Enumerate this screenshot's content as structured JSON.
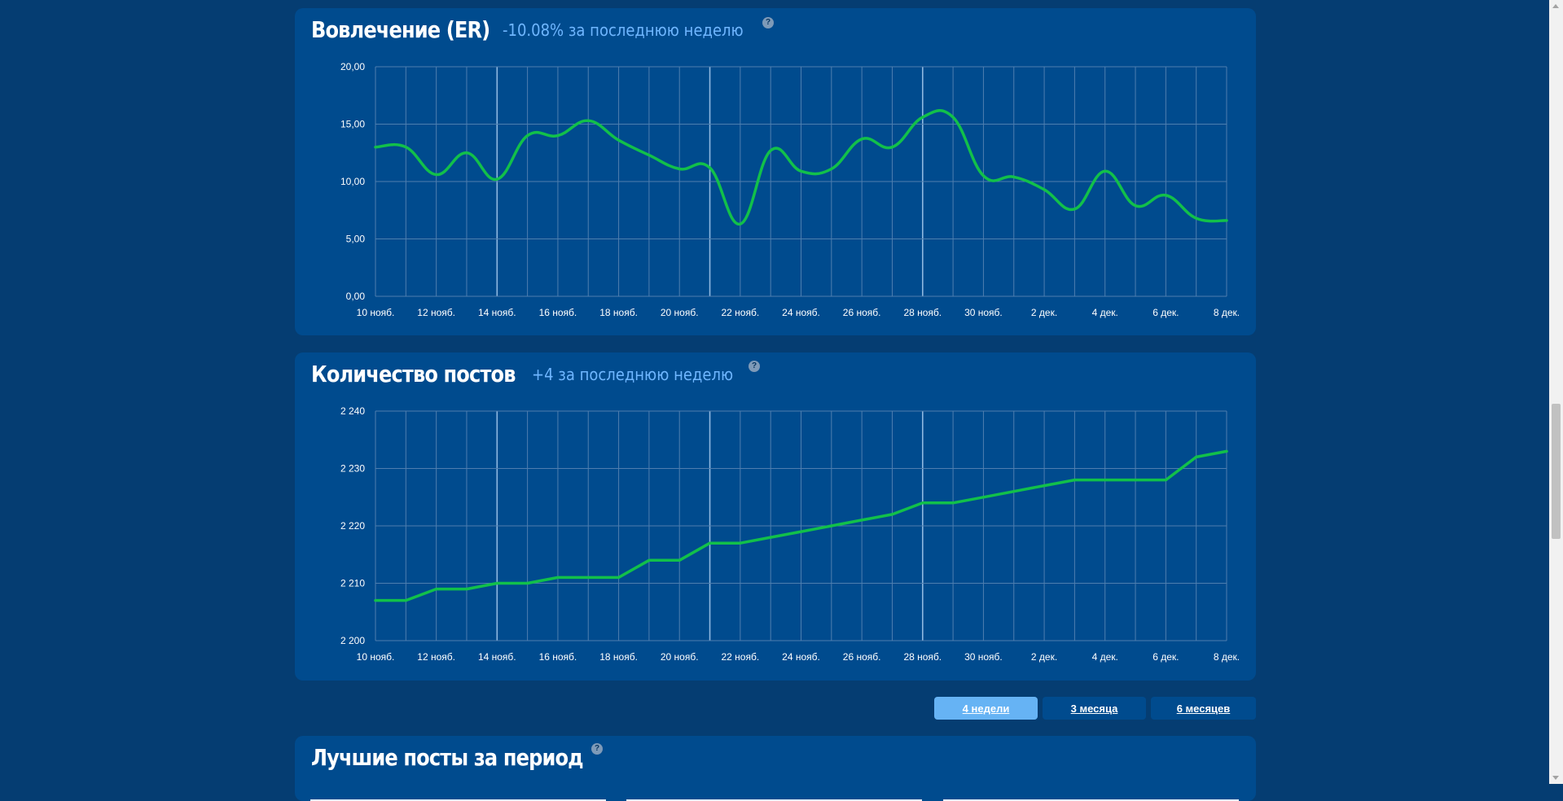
{
  "colors": {
    "page_bg": "#053d72",
    "card_bg": "#004b8e",
    "line": "#12c04a",
    "accent_text": "#6fb6ff",
    "active_button": "#66b3f4"
  },
  "charts_section": {
    "er": {
      "title": "Вовлечение (ER)",
      "delta": "-10.08% за последнюю неделю",
      "help": "?"
    },
    "posts": {
      "title": "Количество постов",
      "delta": "+4 за последнюю неделю",
      "help": "?"
    }
  },
  "range_buttons": [
    {
      "label": "4 недели",
      "active": true
    },
    {
      "label": "3 месяца",
      "active": false
    },
    {
      "label": "6 месяцев",
      "active": false
    }
  ],
  "best_posts": {
    "title": "Лучшие посты за период",
    "help": "?"
  },
  "chart_data": [
    {
      "type": "line",
      "title": "Вовлечение (ER)",
      "x_tick_labels": [
        "10 нояб.",
        "12 нояб.",
        "14 нояб.",
        "16 нояб.",
        "18 нояб.",
        "20 нояб.",
        "22 нояб.",
        "24 нояб.",
        "26 нояб.",
        "28 нояб.",
        "30 нояб.",
        "2 дек.",
        "4 дек.",
        "6 дек.",
        "8 дек."
      ],
      "x": [
        "10 нояб.",
        "11 нояб.",
        "12 нояб.",
        "13 нояб.",
        "14 нояб.",
        "15 нояб.",
        "16 нояб.",
        "17 нояб.",
        "18 нояб.",
        "19 нояб.",
        "20 нояб.",
        "21 нояб.",
        "22 нояб.",
        "23 нояб.",
        "24 нояб.",
        "25 нояб.",
        "26 нояб.",
        "27 нояб.",
        "28 нояб.",
        "29 нояб.",
        "30 нояб.",
        "1 дек.",
        "2 дек.",
        "3 дек.",
        "4 дек.",
        "5 дек.",
        "6 дек.",
        "7 дек.",
        "8 дек."
      ],
      "series": [
        {
          "values": [
            13.0,
            13.0,
            10.6,
            12.5,
            10.2,
            14.0,
            14.0,
            15.3,
            13.6,
            12.3,
            11.1,
            11.2,
            6.3,
            12.7,
            10.9,
            11.1,
            13.7,
            13.0,
            15.6,
            15.6,
            10.5,
            10.4,
            9.3,
            7.6,
            10.9,
            7.9,
            8.8,
            6.8,
            6.6
          ]
        }
      ],
      "y_ticks": [
        "0,00",
        "5,00",
        "10,00",
        "15,00",
        "20,00"
      ],
      "ylim": [
        0,
        20
      ],
      "grid": true,
      "smooth": true
    },
    {
      "type": "line",
      "title": "Количество постов",
      "x_tick_labels": [
        "10 нояб.",
        "12 нояб.",
        "14 нояб.",
        "16 нояб.",
        "18 нояб.",
        "20 нояб.",
        "22 нояб.",
        "24 нояб.",
        "26 нояб.",
        "28 нояб.",
        "30 нояб.",
        "2 дек.",
        "4 дек.",
        "6 дек.",
        "8 дек."
      ],
      "x": [
        "10 нояб.",
        "11 нояб.",
        "12 нояб.",
        "13 нояб.",
        "14 нояб.",
        "15 нояб.",
        "16 нояб.",
        "17 нояб.",
        "18 нояб.",
        "19 нояб.",
        "20 нояб.",
        "21 нояб.",
        "22 нояб.",
        "23 нояб.",
        "24 нояб.",
        "25 нояб.",
        "26 нояб.",
        "27 нояб.",
        "28 нояб.",
        "29 нояб.",
        "30 нояб.",
        "1 дек.",
        "2 дек.",
        "3 дек.",
        "4 дек.",
        "5 дек.",
        "6 дек.",
        "7 дек.",
        "8 дек."
      ],
      "series": [
        {
          "values": [
            2207,
            2207,
            2209,
            2209,
            2210,
            2210,
            2211,
            2211,
            2211,
            2214,
            2214,
            2217,
            2217,
            2218,
            2219,
            2220,
            2221,
            2222,
            2224,
            2224,
            2225,
            2226,
            2227,
            2228,
            2228,
            2228,
            2228,
            2232,
            2233
          ]
        }
      ],
      "y_ticks": [
        "2 200",
        "2 210",
        "2 220",
        "2 230",
        "2 240"
      ],
      "ylim": [
        2200,
        2240
      ],
      "grid": true,
      "smooth": false
    }
  ]
}
